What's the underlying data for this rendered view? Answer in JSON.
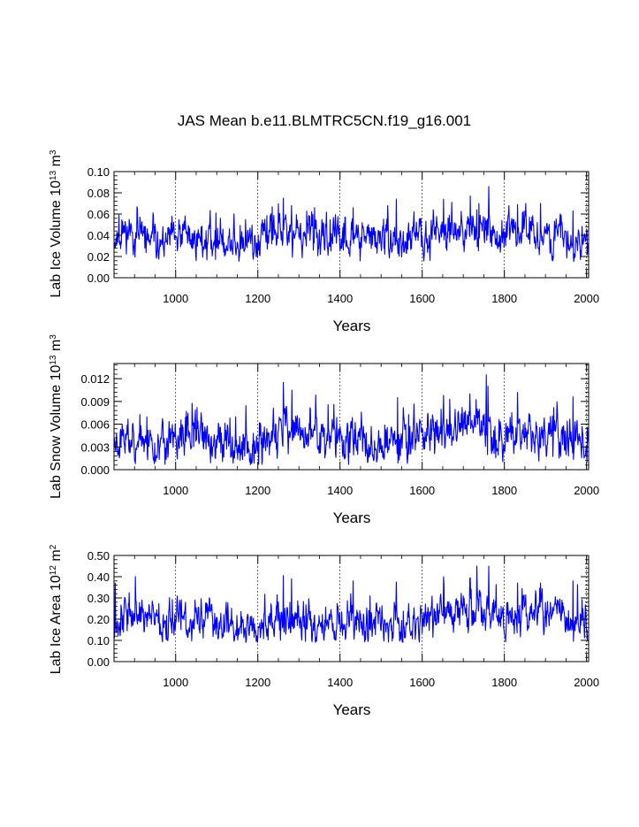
{
  "title": "JAS Mean b.e11.BLMTRC5CN.f19_g16.001",
  "colors": {
    "line": "#0000ff",
    "axis": "#000000",
    "grid": "#000000"
  },
  "chart_data": [
    {
      "id": "ice_volume",
      "type": "line",
      "series_name": "Lab Ice Volume",
      "ylabel": {
        "main": "Lab Ice Volume 10",
        "exp1": "13",
        "unit": " m",
        "exp2": "3"
      },
      "xlabel": "Years",
      "xlim": [
        850,
        2005
      ],
      "ylim": [
        0,
        0.1
      ],
      "xticks": [
        1000,
        1200,
        1400,
        1600,
        1800,
        2000
      ],
      "xtick_labels": [
        "1000",
        "1200",
        "1400",
        "1600",
        "1800",
        "2000"
      ],
      "yticks": [
        0,
        0.02,
        0.04,
        0.06,
        0.08,
        0.1
      ],
      "ytick_labels": [
        "0.00",
        "0.02",
        "0.04",
        "0.06",
        "0.08",
        "0.10"
      ],
      "grid": "dashed vertical at major x ticks",
      "base": 0.034,
      "sd": 0.0075,
      "clip": [
        0.015,
        0.09
      ],
      "seed": 11,
      "anchors": [
        [
          850,
          0.036
        ],
        [
          880,
          0.045
        ],
        [
          950,
          0.032
        ],
        [
          1050,
          0.038
        ],
        [
          1150,
          0.031
        ],
        [
          1250,
          0.042
        ],
        [
          1350,
          0.036
        ],
        [
          1450,
          0.038
        ],
        [
          1550,
          0.032
        ],
        [
          1650,
          0.046
        ],
        [
          1700,
          0.045
        ],
        [
          1760,
          0.048
        ],
        [
          1790,
          0.036
        ],
        [
          1850,
          0.046
        ],
        [
          1950,
          0.036
        ],
        [
          2005,
          0.03
        ]
      ],
      "spikes": [
        [
          1262,
          0.075
        ],
        [
          1282,
          0.068
        ],
        [
          1432,
          0.066
        ],
        [
          1537,
          0.074
        ],
        [
          1652,
          0.074
        ],
        [
          1672,
          0.071
        ],
        [
          1717,
          0.077
        ],
        [
          1738,
          0.07
        ],
        [
          1762,
          0.086
        ],
        [
          1832,
          0.069
        ],
        [
          1852,
          0.07
        ],
        [
          1888,
          0.07
        ],
        [
          1967,
          0.063
        ],
        [
          862,
          0.059
        ],
        [
          1098,
          0.061
        ]
      ]
    },
    {
      "id": "snow_volume",
      "type": "line",
      "series_name": "Lab Snow Volume",
      "ylabel": {
        "main": "Lab Snow Volume 10",
        "exp1": "13",
        "unit": " m",
        "exp2": "3"
      },
      "xlabel": "Years",
      "xlim": [
        850,
        2005
      ],
      "ylim": [
        0,
        0.014
      ],
      "xticks": [
        1000,
        1200,
        1400,
        1600,
        1800,
        2000
      ],
      "xtick_labels": [
        "1000",
        "1200",
        "1400",
        "1600",
        "1800",
        "2000"
      ],
      "yticks": [
        0,
        0.003,
        0.006,
        0.009,
        0.012
      ],
      "ytick_labels": [
        "0.000",
        "0.003",
        "0.006",
        "0.009",
        "0.012"
      ],
      "grid": "dashed vertical at major x ticks",
      "base": 0.0036,
      "sd": 0.0012,
      "clip": [
        0.0006,
        0.0125
      ],
      "seed": 23,
      "anchors": [
        [
          850,
          0.0038
        ],
        [
          900,
          0.0045
        ],
        [
          950,
          0.003
        ],
        [
          1050,
          0.0042
        ],
        [
          1150,
          0.0032
        ],
        [
          1200,
          0.0028
        ],
        [
          1260,
          0.0055
        ],
        [
          1300,
          0.0048
        ],
        [
          1400,
          0.0038
        ],
        [
          1500,
          0.0035
        ],
        [
          1600,
          0.0048
        ],
        [
          1700,
          0.0055
        ],
        [
          1750,
          0.006
        ],
        [
          1780,
          0.0038
        ],
        [
          1830,
          0.0055
        ],
        [
          1900,
          0.0045
        ],
        [
          2005,
          0.0035
        ]
      ],
      "spikes": [
        [
          1262,
          0.0115
        ],
        [
          1283,
          0.0105
        ],
        [
          1540,
          0.0095
        ],
        [
          1652,
          0.0098
        ],
        [
          1716,
          0.01
        ],
        [
          1756,
          0.0125
        ],
        [
          1760,
          0.011
        ],
        [
          1832,
          0.0102
        ],
        [
          1967,
          0.0096
        ],
        [
          1052,
          0.0082
        ]
      ]
    },
    {
      "id": "ice_area",
      "type": "line",
      "series_name": "Lab Ice Area",
      "ylabel": {
        "main": "Lab Ice Area 10",
        "exp1": "12",
        "unit": " m",
        "exp2": "2"
      },
      "xlabel": "Years",
      "xlim": [
        850,
        2005
      ],
      "ylim": [
        0,
        0.5
      ],
      "xticks": [
        1000,
        1200,
        1400,
        1600,
        1800,
        2000
      ],
      "xtick_labels": [
        "1000",
        "1200",
        "1400",
        "1600",
        "1800",
        "2000"
      ],
      "yticks": [
        0,
        0.1,
        0.2,
        0.3,
        0.4,
        0.5
      ],
      "ytick_labels": [
        "0.00",
        "0.10",
        "0.20",
        "0.30",
        "0.40",
        "0.50"
      ],
      "grid": "dashed vertical at major x ticks",
      "base": 0.19,
      "sd": 0.04,
      "clip": [
        0.09,
        0.45
      ],
      "seed": 37,
      "anchors": [
        [
          850,
          0.2
        ],
        [
          880,
          0.24
        ],
        [
          950,
          0.18
        ],
        [
          1050,
          0.2
        ],
        [
          1150,
          0.17
        ],
        [
          1250,
          0.2
        ],
        [
          1350,
          0.19
        ],
        [
          1450,
          0.2
        ],
        [
          1550,
          0.17
        ],
        [
          1650,
          0.23
        ],
        [
          1700,
          0.22
        ],
        [
          1760,
          0.24
        ],
        [
          1790,
          0.2
        ],
        [
          1850,
          0.24
        ],
        [
          1950,
          0.2
        ],
        [
          2005,
          0.15
        ]
      ],
      "spikes": [
        [
          853,
          0.37
        ],
        [
          1262,
          0.405
        ],
        [
          1282,
          0.39
        ],
        [
          1432,
          0.38
        ],
        [
          1537,
          0.375
        ],
        [
          1652,
          0.4
        ],
        [
          1717,
          0.395
        ],
        [
          1762,
          0.45
        ],
        [
          1832,
          0.37
        ],
        [
          1888,
          0.37
        ],
        [
          1967,
          0.38
        ]
      ]
    }
  ]
}
